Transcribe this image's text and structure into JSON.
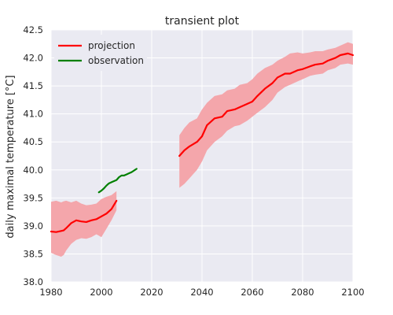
{
  "chart_data": {
    "type": "line",
    "title": "transient plot",
    "xlabel": "",
    "ylabel": "daily maximal temperature [°C]",
    "xlim": [
      1980,
      2100
    ],
    "ylim": [
      38.0,
      42.5
    ],
    "xticks": [
      1980,
      2000,
      2020,
      2040,
      2060,
      2080,
      2100
    ],
    "yticks": [
      38.0,
      38.5,
      39.0,
      39.5,
      40.0,
      40.5,
      41.0,
      41.5,
      42.0,
      42.5
    ],
    "xtick_labels": [
      "1980",
      "2000",
      "2020",
      "2040",
      "2060",
      "2080",
      "2100"
    ],
    "ytick_labels": [
      "38.0",
      "38.5",
      "39.0",
      "39.5",
      "40.0",
      "40.5",
      "41.0",
      "41.5",
      "42.0",
      "42.5"
    ],
    "grid": true,
    "legend_position": "top-left",
    "colors": {
      "background": "#eaeaf2",
      "grid": "#ffffff",
      "projection": "#ff0000",
      "band": "#f4a6ab",
      "observation": "#008000"
    },
    "series": [
      {
        "name": "projection",
        "segments": [
          {
            "x": [
              1980,
              1982,
              1984,
              1985,
              1986,
              1988,
              1990,
              1992,
              1994,
              1996,
              1998,
              2000,
              2002,
              2004,
              2006
            ],
            "y": [
              38.9,
              38.89,
              38.91,
              38.92,
              38.96,
              39.05,
              39.1,
              39.08,
              39.07,
              39.1,
              39.12,
              39.17,
              39.22,
              39.3,
              39.45
            ],
            "upper": [
              39.43,
              39.45,
              39.42,
              39.44,
              39.45,
              39.42,
              39.45,
              39.4,
              39.37,
              39.38,
              39.4,
              39.48,
              39.52,
              39.55,
              39.62
            ],
            "lower": [
              38.52,
              38.48,
              38.45,
              38.48,
              38.56,
              38.68,
              38.75,
              38.78,
              38.77,
              38.8,
              38.85,
              38.8,
              38.95,
              39.1,
              39.28
            ]
          },
          {
            "x": [
              2031,
              2033,
              2035,
              2038,
              2040,
              2042,
              2045,
              2048,
              2050,
              2053,
              2055,
              2058,
              2060,
              2062,
              2065,
              2068,
              2070,
              2073,
              2075,
              2078,
              2080,
              2083,
              2085,
              2088,
              2090,
              2093,
              2095,
              2098,
              2100
            ],
            "y": [
              40.25,
              40.35,
              40.42,
              40.5,
              40.6,
              40.8,
              40.92,
              40.95,
              41.05,
              41.08,
              41.12,
              41.18,
              41.22,
              41.32,
              41.45,
              41.55,
              41.65,
              41.72,
              41.72,
              41.78,
              41.8,
              41.85,
              41.88,
              41.9,
              41.95,
              42.0,
              42.05,
              42.08,
              42.05
            ],
            "upper": [
              40.62,
              40.75,
              40.85,
              40.92,
              41.08,
              41.2,
              41.32,
              41.35,
              41.42,
              41.45,
              41.52,
              41.55,
              41.62,
              41.72,
              41.82,
              41.88,
              41.95,
              42.02,
              42.08,
              42.1,
              42.08,
              42.1,
              42.12,
              42.12,
              42.15,
              42.18,
              42.22,
              42.28,
              42.25
            ],
            "lower": [
              39.68,
              39.75,
              39.85,
              40.0,
              40.15,
              40.35,
              40.5,
              40.6,
              40.7,
              40.78,
              40.8,
              40.88,
              40.95,
              41.02,
              41.12,
              41.25,
              41.38,
              41.48,
              41.52,
              41.58,
              41.62,
              41.68,
              41.7,
              41.72,
              41.78,
              41.82,
              41.88,
              41.9,
              41.88
            ]
          }
        ]
      },
      {
        "name": "observation",
        "segments": [
          {
            "x": [
              1999,
              2000,
              2001,
              2002,
              2003,
              2004,
              2005,
              2006,
              2007,
              2008,
              2009,
              2010,
              2011,
              2012,
              2013,
              2014
            ],
            "y": [
              39.6,
              39.63,
              39.67,
              39.72,
              39.76,
              39.78,
              39.8,
              39.82,
              39.87,
              39.9,
              39.9,
              39.92,
              39.94,
              39.96,
              39.99,
              40.02
            ]
          }
        ]
      }
    ]
  }
}
